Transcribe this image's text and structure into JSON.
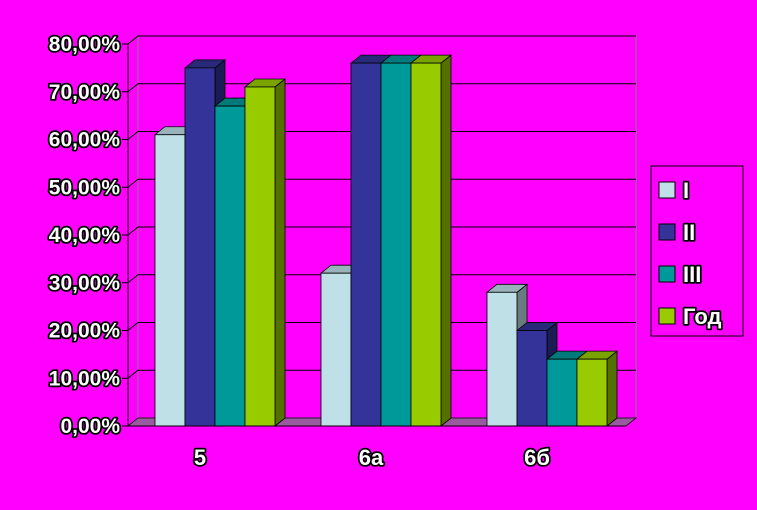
{
  "chart_data": {
    "type": "bar",
    "title": "",
    "xlabel": "",
    "ylabel": "",
    "categories": [
      "5",
      "6а",
      "6б"
    ],
    "series": [
      {
        "name": "I",
        "values": [
          61,
          32,
          28
        ],
        "color": "#c0e0e8"
      },
      {
        "name": "II",
        "values": [
          75,
          76,
          20
        ],
        "color": "#333399"
      },
      {
        "name": "III",
        "values": [
          67,
          76,
          14
        ],
        "color": "#009999"
      },
      {
        "name": "Год",
        "values": [
          71,
          76,
          14
        ],
        "color": "#99cc00"
      }
    ],
    "ylim": [
      0,
      80
    ],
    "yticks": [
      "0,00%",
      "10,00%",
      "20,00%",
      "30,00%",
      "40,00%",
      "50,00%",
      "60,00%",
      "70,00%",
      "80,00%"
    ],
    "grid": true,
    "legend_position": "right",
    "background_color": "#ff00ff",
    "plot_background_color": "#ff00ff",
    "gridline_color": "#000000"
  }
}
